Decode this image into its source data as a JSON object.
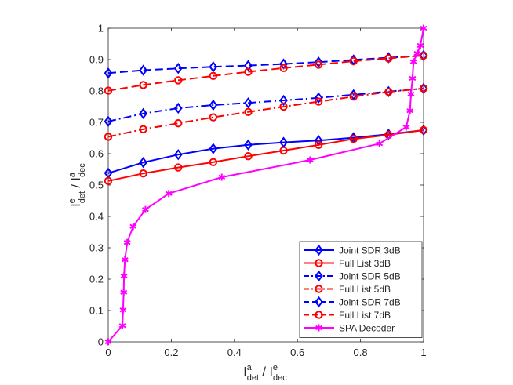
{
  "chart_data": {
    "type": "line",
    "title": "",
    "xlabel": {
      "main": "I",
      "sup1": "a",
      "sub1": "det",
      "sep": " / ",
      "main2": "I",
      "sup2": "e",
      "sub2": "dec"
    },
    "ylabel": {
      "main": "I",
      "sup1": "e",
      "sub1": "det",
      "sep": " / ",
      "main2": "I",
      "sup2": "a",
      "sub2": "dec"
    },
    "xlim": [
      0,
      1
    ],
    "ylim": [
      0,
      1
    ],
    "xticks": [
      0,
      0.2,
      0.4,
      0.6,
      0.8,
      1
    ],
    "xtick_labels": [
      "0",
      "0.2",
      "0.4",
      "0.6",
      "0.8",
      "1"
    ],
    "yticks": [
      0,
      0.1,
      0.2,
      0.3,
      0.4,
      0.5,
      0.6,
      0.7,
      0.8,
      0.9,
      1
    ],
    "ytick_labels": [
      "0",
      "0.1",
      "0.2",
      "0.3",
      "0.4",
      "0.5",
      "0.6",
      "0.7",
      "0.8",
      "0.9",
      "1"
    ],
    "grid": false,
    "legend_position": "bottom-right",
    "series": [
      {
        "name": "Joint SDR 3dB",
        "color": "#0000ff",
        "dash": "solid",
        "marker": "diamond",
        "x": [
          0,
          0.111,
          0.222,
          0.333,
          0.444,
          0.556,
          0.667,
          0.778,
          0.889,
          1.0
        ],
        "y": [
          0.538,
          0.572,
          0.597,
          0.616,
          0.628,
          0.636,
          0.642,
          0.651,
          0.662,
          0.675
        ]
      },
      {
        "name": "Full List 3dB",
        "color": "#ff0000",
        "dash": "solid",
        "marker": "circle",
        "x": [
          0,
          0.111,
          0.222,
          0.333,
          0.444,
          0.556,
          0.667,
          0.778,
          0.889,
          1.0
        ],
        "y": [
          0.513,
          0.537,
          0.556,
          0.573,
          0.592,
          0.61,
          0.628,
          0.647,
          0.66,
          0.675
        ]
      },
      {
        "name": "Joint SDR 5dB",
        "color": "#0000ff",
        "dash": "dashdot",
        "marker": "diamond",
        "x": [
          0,
          0.111,
          0.222,
          0.333,
          0.444,
          0.556,
          0.667,
          0.778,
          0.889,
          1.0
        ],
        "y": [
          0.703,
          0.728,
          0.745,
          0.755,
          0.762,
          0.77,
          0.778,
          0.788,
          0.798,
          0.808
        ]
      },
      {
        "name": "Full List 5dB",
        "color": "#ff0000",
        "dash": "dashdot",
        "marker": "circle",
        "x": [
          0,
          0.111,
          0.222,
          0.333,
          0.444,
          0.556,
          0.667,
          0.778,
          0.889,
          1.0
        ],
        "y": [
          0.654,
          0.678,
          0.697,
          0.716,
          0.733,
          0.75,
          0.766,
          0.782,
          0.797,
          0.808
        ]
      },
      {
        "name": "Joint SDR 7dB",
        "color": "#0000ff",
        "dash": "dashed",
        "marker": "diamond",
        "x": [
          0,
          0.111,
          0.222,
          0.333,
          0.444,
          0.556,
          0.667,
          0.778,
          0.889,
          1.0
        ],
        "y": [
          0.857,
          0.866,
          0.872,
          0.877,
          0.881,
          0.886,
          0.892,
          0.899,
          0.906,
          0.913
        ]
      },
      {
        "name": "Full List 7dB",
        "color": "#ff0000",
        "dash": "dashed",
        "marker": "circle",
        "x": [
          0,
          0.111,
          0.222,
          0.333,
          0.444,
          0.556,
          0.667,
          0.778,
          0.889,
          1.0
        ],
        "y": [
          0.801,
          0.819,
          0.834,
          0.848,
          0.861,
          0.873,
          0.884,
          0.895,
          0.904,
          0.913
        ]
      },
      {
        "name": "SPA Decoder",
        "color": "#ff00ff",
        "dash": "solid",
        "marker": "asterisk",
        "x": [
          0,
          0.045,
          0.047,
          0.049,
          0.05,
          0.053,
          0.06,
          0.079,
          0.118,
          0.192,
          0.36,
          0.64,
          0.86,
          0.945,
          0.957,
          0.96,
          0.965,
          0.968,
          0.98,
          0.99,
          1.0
        ],
        "y": [
          0,
          0.052,
          0.102,
          0.158,
          0.21,
          0.262,
          0.317,
          0.368,
          0.422,
          0.473,
          0.525,
          0.58,
          0.632,
          0.685,
          0.737,
          0.79,
          0.84,
          0.893,
          0.92,
          0.945,
          1.0
        ]
      }
    ]
  }
}
